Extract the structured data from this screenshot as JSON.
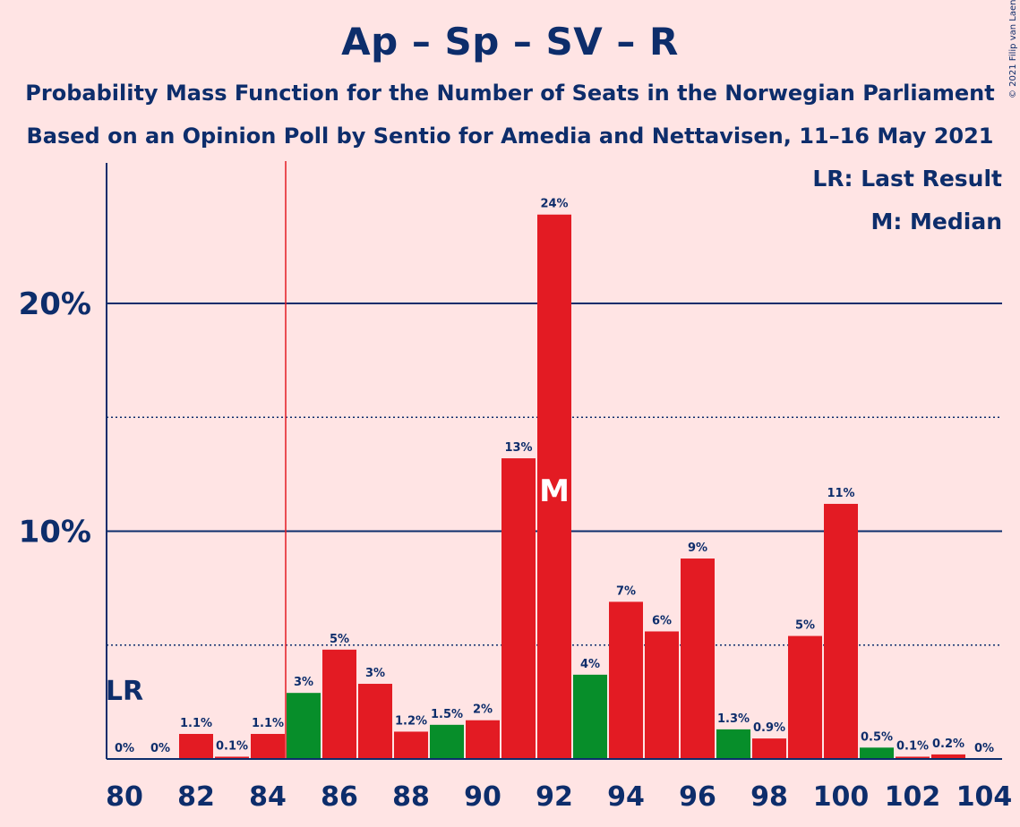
{
  "header": {
    "title": "Ap – Sp – SV – R",
    "subtitle1": "Probability Mass Function for the Number of Seats in the Norwegian Parliament",
    "subtitle2": "Based on an Opinion Poll by Sentio for Amedia and Nettavisen, 11–16 May 2021",
    "copyright": "© 2021 Filip van Laenen"
  },
  "legend": {
    "lr": "LR: Last Result",
    "m": "M: Median"
  },
  "colors": {
    "red": "#e31b23",
    "green": "#078e2a",
    "axis": "#0d2d6b",
    "background": "#ffe4e4"
  },
  "chart_data": {
    "type": "bar",
    "xlabel": "",
    "ylabel": "",
    "ylim": [
      0,
      26
    ],
    "yticks": [
      "10%",
      "20%"
    ],
    "ytick_values": [
      10,
      20
    ],
    "minor_grid": [
      5,
      15
    ],
    "xticks": [
      "80",
      "82",
      "84",
      "86",
      "88",
      "90",
      "92",
      "94",
      "96",
      "98",
      "100",
      "102",
      "104"
    ],
    "last_result": {
      "seats": 84.5,
      "label": "LR"
    },
    "median": {
      "seats": 92,
      "label": "M"
    },
    "bars": [
      {
        "seats": 80,
        "value": 0,
        "label": "0%",
        "color": "red"
      },
      {
        "seats": 81,
        "value": 0,
        "label": "0%",
        "color": "red"
      },
      {
        "seats": 82,
        "value": 1.1,
        "label": "1.1%",
        "color": "red"
      },
      {
        "seats": 83,
        "value": 0.1,
        "label": "0.1%",
        "color": "red"
      },
      {
        "seats": 84,
        "value": 1.1,
        "label": "1.1%",
        "color": "red"
      },
      {
        "seats": 85,
        "value": 2.9,
        "label": "3%",
        "color": "green"
      },
      {
        "seats": 86,
        "value": 4.8,
        "label": "5%",
        "color": "red"
      },
      {
        "seats": 87,
        "value": 3.3,
        "label": "3%",
        "color": "red"
      },
      {
        "seats": 88,
        "value": 1.2,
        "label": "1.2%",
        "color": "red"
      },
      {
        "seats": 89,
        "value": 1.5,
        "label": "1.5%",
        "color": "green"
      },
      {
        "seats": 90,
        "value": 1.7,
        "label": "2%",
        "color": "red"
      },
      {
        "seats": 91,
        "value": 13.2,
        "label": "13%",
        "color": "red"
      },
      {
        "seats": 92,
        "value": 23.9,
        "label": "24%",
        "color": "red"
      },
      {
        "seats": 93,
        "value": 3.7,
        "label": "4%",
        "color": "green"
      },
      {
        "seats": 94,
        "value": 6.9,
        "label": "7%",
        "color": "red"
      },
      {
        "seats": 95,
        "value": 5.6,
        "label": "6%",
        "color": "red"
      },
      {
        "seats": 96,
        "value": 8.8,
        "label": "9%",
        "color": "red"
      },
      {
        "seats": 97,
        "value": 1.3,
        "label": "1.3%",
        "color": "green"
      },
      {
        "seats": 98,
        "value": 0.9,
        "label": "0.9%",
        "color": "red"
      },
      {
        "seats": 99,
        "value": 5.4,
        "label": "5%",
        "color": "red"
      },
      {
        "seats": 100,
        "value": 11.2,
        "label": "11%",
        "color": "red"
      },
      {
        "seats": 101,
        "value": 0.5,
        "label": "0.5%",
        "color": "green"
      },
      {
        "seats": 102,
        "value": 0.1,
        "label": "0.1%",
        "color": "red"
      },
      {
        "seats": 103,
        "value": 0.2,
        "label": "0.2%",
        "color": "red"
      },
      {
        "seats": 104,
        "value": 0,
        "label": "0%",
        "color": "red"
      }
    ]
  }
}
